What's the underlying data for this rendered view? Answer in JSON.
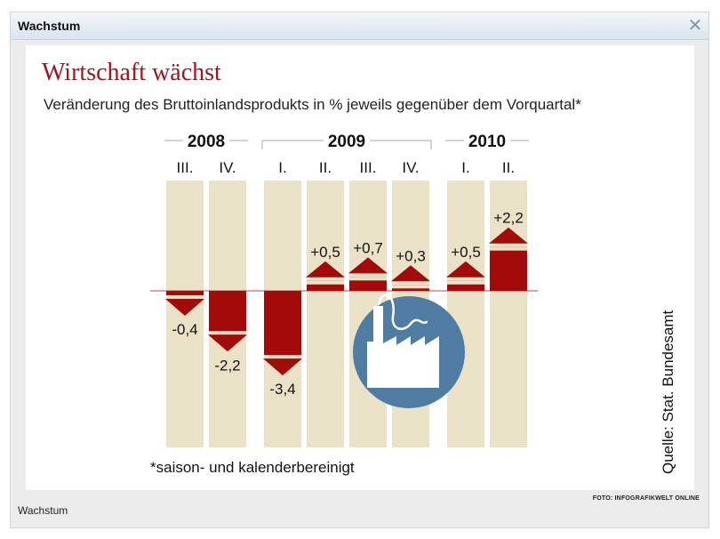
{
  "window": {
    "title": "Wachstum",
    "close_icon": "close-icon",
    "caption": "Wachstum",
    "credit": "FOTO: INFOGRAFIKWELT ONLINE"
  },
  "chart_data": {
    "type": "bar",
    "title": "Wirtschaft wächst",
    "subtitle": "Veränderung des Bruttoinlandsprodukts in % jeweils gegenüber dem Vorquartal*",
    "footnote": "*saison- und kalenderbereinigt",
    "source": "Quelle: Stat. Bundesamt",
    "years": [
      {
        "label": "2008",
        "quarters": 2
      },
      {
        "label": "2009",
        "quarters": 4
      },
      {
        "label": "2010",
        "quarters": 2
      }
    ],
    "categories": [
      "III.",
      "IV.",
      "I.",
      "II.",
      "III.",
      "IV.",
      "I.",
      "II."
    ],
    "values": [
      -0.4,
      -2.2,
      -3.4,
      0.5,
      0.7,
      0.3,
      0.5,
      2.2
    ],
    "value_labels": [
      "-0,4",
      "-2,2",
      "-3,4",
      "+0,5",
      "+0,7",
      "+0,3",
      "+0,5",
      "+2,2"
    ],
    "xlabel": "",
    "ylabel": "",
    "grid": false,
    "colors": {
      "bar": "#a30b0b",
      "column_background": "#e9e2c6",
      "title": "#a3141c",
      "icon_circle": "#4f7ca3"
    },
    "icon": "factory-icon"
  }
}
